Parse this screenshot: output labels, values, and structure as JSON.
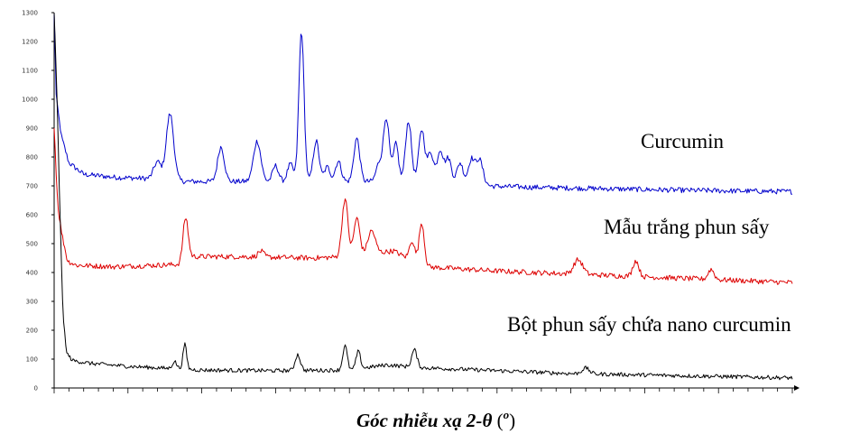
{
  "chart_data": {
    "type": "line",
    "xlabel": "Góc nhiễu xạ 2-θ (o)",
    "xlabel_main": "Góc nhiễu xạ 2-",
    "xlabel_theta": "θ",
    "xlabel_open": " (",
    "xlabel_sup": "o",
    "xlabel_close": ")",
    "ylim": [
      0,
      1300
    ],
    "y_ticks": [
      "0",
      "100",
      "200",
      "300",
      "400",
      "500",
      "600",
      "700",
      "800",
      "900",
      "1000",
      "1100",
      "1200",
      "1300"
    ],
    "x_range": [
      0,
      100
    ],
    "grid": false,
    "series": [
      {
        "name": "Curcumin",
        "color": "#0000cc",
        "baseline": [
          [
            0,
            1300
          ],
          [
            0.3,
            1000
          ],
          [
            1,
            870
          ],
          [
            2,
            780
          ],
          [
            4,
            740
          ],
          [
            8,
            730
          ],
          [
            13,
            725
          ],
          [
            18,
            715
          ],
          [
            25,
            715
          ],
          [
            35,
            715
          ],
          [
            45,
            715
          ],
          [
            55,
            715
          ],
          [
            58,
            700
          ],
          [
            65,
            695
          ],
          [
            75,
            690
          ],
          [
            85,
            685
          ],
          [
            100,
            680
          ]
        ],
        "peaks": [
          [
            14,
            60,
            0.5
          ],
          [
            15.7,
            230,
            0.5
          ],
          [
            22.6,
            120,
            0.45
          ],
          [
            27.5,
            140,
            0.5
          ],
          [
            30,
            55,
            0.4
          ],
          [
            32,
            60,
            0.4
          ],
          [
            33.5,
            520,
            0.35
          ],
          [
            35.5,
            140,
            0.4
          ],
          [
            37,
            50,
            0.4
          ],
          [
            38.5,
            70,
            0.4
          ],
          [
            41,
            150,
            0.4
          ],
          [
            44,
            60,
            0.4
          ],
          [
            45,
            220,
            0.4
          ],
          [
            46.3,
            130,
            0.35
          ],
          [
            48,
            210,
            0.4
          ],
          [
            49.8,
            180,
            0.4
          ],
          [
            51,
            100,
            0.4
          ],
          [
            52.3,
            110,
            0.4
          ],
          [
            53.4,
            80,
            0.4
          ],
          [
            55,
            65,
            0.4
          ],
          [
            56.5,
            80,
            0.4
          ],
          [
            57.6,
            90,
            0.5
          ]
        ]
      },
      {
        "name": "Mẫu trắng phun sấy",
        "color": "#dd0000",
        "baseline": [
          [
            0,
            900
          ],
          [
            0.5,
            630
          ],
          [
            1,
            540
          ],
          [
            1.8,
            440
          ],
          [
            3,
            425
          ],
          [
            8,
            420
          ],
          [
            17,
            428
          ],
          [
            18,
            455
          ],
          [
            25,
            455
          ],
          [
            35,
            450
          ],
          [
            40,
            455
          ],
          [
            46,
            475
          ],
          [
            50,
            420
          ],
          [
            60,
            405
          ],
          [
            70,
            395
          ],
          [
            80,
            385
          ],
          [
            90,
            375
          ],
          [
            100,
            365
          ]
        ],
        "peaks": [
          [
            17.8,
            140,
            0.35
          ],
          [
            28,
            20,
            0.4
          ],
          [
            39.4,
            200,
            0.4
          ],
          [
            41,
            130,
            0.4
          ],
          [
            43,
            80,
            0.5
          ],
          [
            48.5,
            70,
            0.35
          ],
          [
            49.8,
            150,
            0.35
          ],
          [
            71,
            50,
            0.6
          ],
          [
            78.8,
            55,
            0.4
          ],
          [
            89,
            35,
            0.4
          ]
        ]
      },
      {
        "name": "Bột phun sấy chứa nano curcumin",
        "color": "#000000",
        "baseline": [
          [
            0,
            1300
          ],
          [
            0.4,
            1000
          ],
          [
            0.8,
            600
          ],
          [
            1.2,
            250
          ],
          [
            1.7,
            120
          ],
          [
            2.5,
            95
          ],
          [
            5,
            85
          ],
          [
            10,
            75
          ],
          [
            20,
            62
          ],
          [
            30,
            60
          ],
          [
            40,
            62
          ],
          [
            45,
            80
          ],
          [
            50,
            70
          ],
          [
            60,
            60
          ],
          [
            70,
            50
          ],
          [
            80,
            45
          ],
          [
            90,
            40
          ],
          [
            100,
            35
          ]
        ],
        "peaks": [
          [
            16.3,
            25,
            0.3
          ],
          [
            17.7,
            85,
            0.25
          ],
          [
            33,
            55,
            0.35
          ],
          [
            39.4,
            85,
            0.3
          ],
          [
            41.2,
            60,
            0.3
          ],
          [
            48.8,
            60,
            0.35
          ],
          [
            72,
            20,
            0.5
          ]
        ]
      }
    ]
  }
}
